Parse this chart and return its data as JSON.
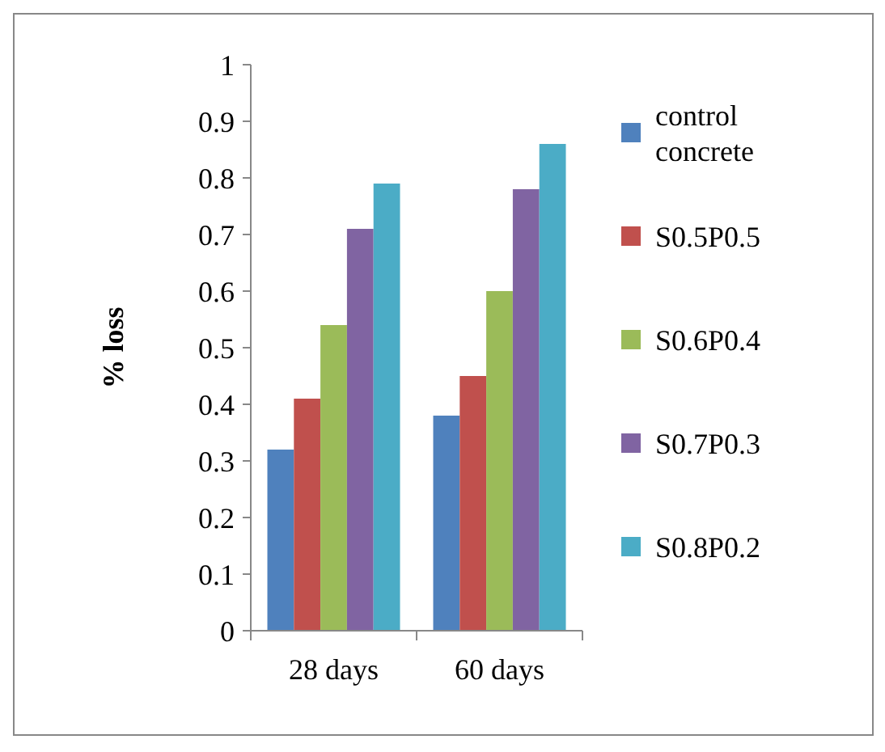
{
  "chart_data": {
    "type": "bar",
    "ylabel": "% loss",
    "categories": [
      "28 days",
      "60 days"
    ],
    "series": [
      {
        "name": "control concrete",
        "color": "#4f81bd",
        "values": [
          0.32,
          0.38
        ]
      },
      {
        "name": "S0.5P0.5",
        "color": "#c0504d",
        "values": [
          0.41,
          0.45
        ]
      },
      {
        "name": "S0.6P0.4",
        "color": "#9bbb59",
        "values": [
          0.54,
          0.6
        ]
      },
      {
        "name": "S0.7P0.3",
        "color": "#8064a2",
        "values": [
          0.71,
          0.78
        ]
      },
      {
        "name": "S0.8P0.2",
        "color": "#4bacc6",
        "values": [
          0.79,
          0.86
        ]
      }
    ],
    "ylim": [
      0,
      1
    ],
    "yticks": [
      0,
      0.1,
      0.2,
      0.3,
      0.4,
      0.5,
      0.6,
      0.7,
      0.8,
      0.9,
      1
    ],
    "grid": false,
    "legend": "right"
  }
}
